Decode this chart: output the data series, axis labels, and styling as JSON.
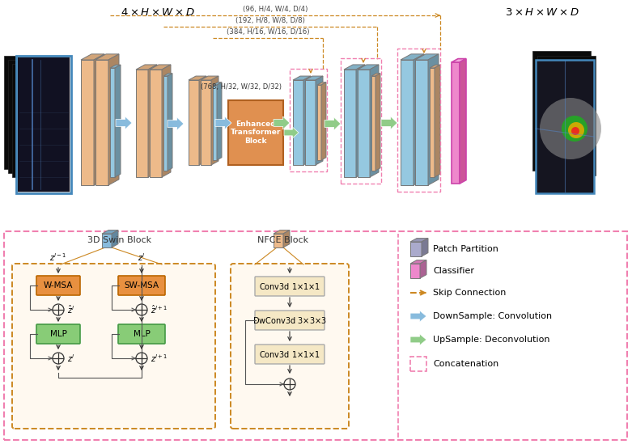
{
  "title_left": "4\\times H\\times W\\times D",
  "title_right": "3\\times H\\times W\\times D",
  "colors": {
    "orange_block": "#EDBA8A",
    "blue_block": "#95C8E0",
    "blue_block_dark": "#6AAECE",
    "orange_block_dark": "#D49860",
    "orange_dashed": "#CC8822",
    "pink_dashed": "#F080B0",
    "green_arrow": "#90CC88",
    "blue_arrow": "#88BBDD",
    "gray_patch": "#AAAAAA",
    "classifier_pink": "#EE88CC",
    "etb_face": "#E09050",
    "light_cream": "#F8EED8",
    "green_block": "#88CC77",
    "wmsa_orange": "#E89040"
  },
  "skip_labels": [
    "(96, H/4, W/4, D/4)",
    "(192, H/8, W/8, D/8)",
    "(384, H/16, W/16, D/16)",
    "(768, H/32, W/32, D/32)"
  ],
  "legend_labels": [
    "Patch Partition",
    "Classifier",
    "Skip Connection",
    "DownSample: Convolution",
    "UpSample: Deconvolution",
    "Concatenation"
  ]
}
